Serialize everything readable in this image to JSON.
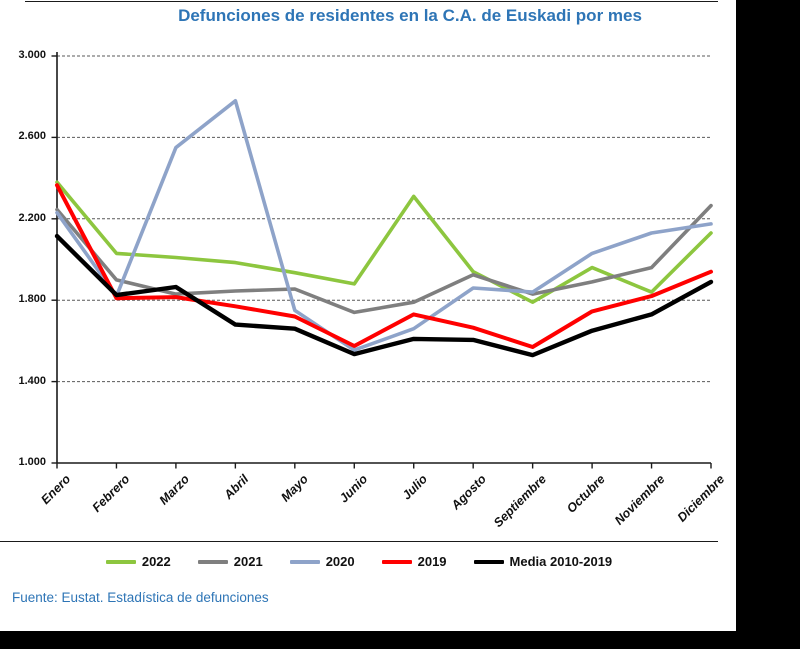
{
  "title": "Defunciones de residentes en la C.A. de Euskadi por mes",
  "title_color": "#2E75B6",
  "source_note": "Fuente: Eustat. Estadística de defunciones",
  "colors": {
    "background_band": "#000000",
    "panel": "#FFFFFF",
    "gridline": "#595959",
    "axis": "#1A1A1A",
    "tick_text": "#111111"
  },
  "chart_data": {
    "type": "line",
    "title": "Defunciones de residentes en la C.A. de Euskadi por mes",
    "xlabel": "",
    "ylabel": "",
    "categories": [
      "Enero",
      "Febrero",
      "Marzo",
      "Abril",
      "Mayo",
      "Junio",
      "Julio",
      "Agosto",
      "Septiembre",
      "Octubre",
      "Noviembre",
      "Diciembre"
    ],
    "series": [
      {
        "name": "2022",
        "color": "#8DC63F",
        "values": [
          2380,
          2030,
          2010,
          1985,
          1935,
          1880,
          2310,
          1940,
          1790,
          1960,
          1840,
          2130
        ]
      },
      {
        "name": "2021",
        "color": "#7F7F7F",
        "values": [
          2245,
          1900,
          1830,
          1845,
          1855,
          1740,
          1790,
          1925,
          1830,
          1890,
          1960,
          2265
        ]
      },
      {
        "name": "2020",
        "color": "#8EA3C9",
        "values": [
          2230,
          1820,
          2550,
          2780,
          1750,
          1555,
          1660,
          1860,
          1840,
          2030,
          2130,
          2175
        ]
      },
      {
        "name": "2019",
        "color": "#FF0000",
        "values": [
          2365,
          1810,
          1815,
          1770,
          1720,
          1575,
          1730,
          1665,
          1570,
          1745,
          1820,
          1940
        ]
      },
      {
        "name": "Media 2010-2019",
        "color": "#000000",
        "values": [
          2115,
          1825,
          1865,
          1680,
          1660,
          1535,
          1610,
          1605,
          1530,
          1650,
          1730,
          1890
        ]
      }
    ],
    "ylim": [
      1000,
      3000
    ],
    "y_ticks": [
      3000,
      2600,
      2200,
      1800,
      1400,
      1000
    ],
    "y_tick_labels": [
      "3.000",
      "2.600",
      "2.200",
      "1.800",
      "1.400",
      "1.000"
    ],
    "grid": "horizontal dashed",
    "x_tick_label_rotation": -45,
    "legend_position": "bottom"
  }
}
